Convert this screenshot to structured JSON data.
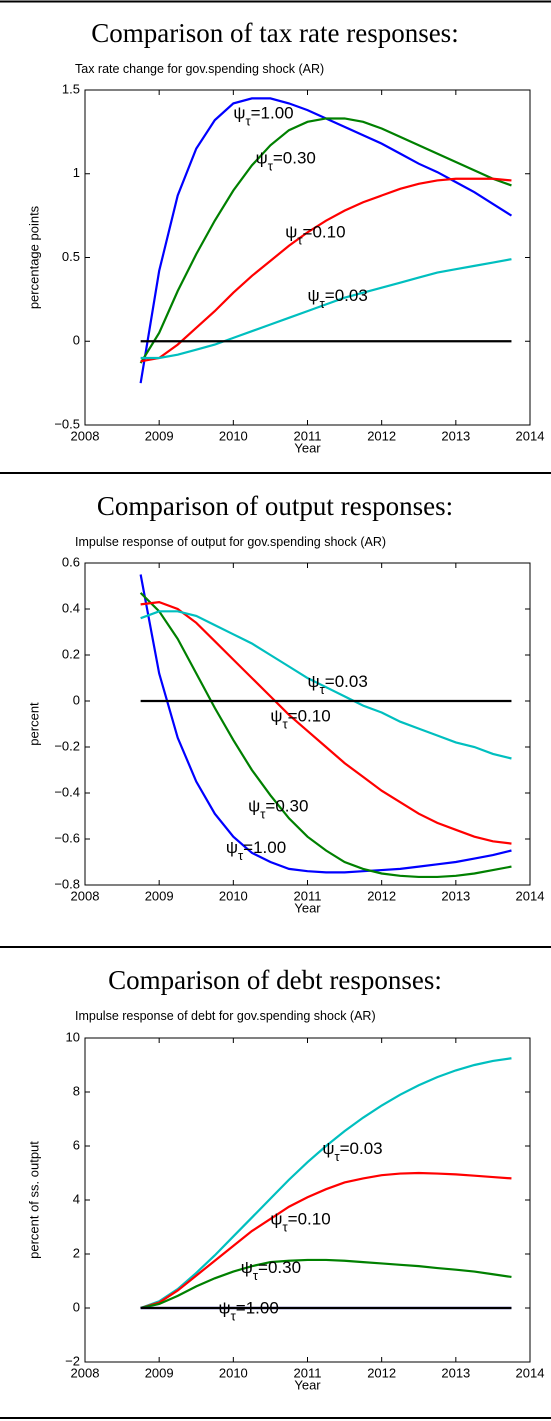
{
  "chart_data": [
    {
      "type": "line",
      "title": "Comparison of tax rate responses:",
      "subtitle": "Tax rate change for gov.spending shock (AR)",
      "xlabel": "Year",
      "ylabel": "percentage points",
      "x": [
        2008.75,
        2009,
        2009.25,
        2009.5,
        2009.75,
        2010,
        2010.25,
        2010.5,
        2010.75,
        2011,
        2011.25,
        2011.5,
        2011.75,
        2012,
        2012.25,
        2012.5,
        2012.75,
        2013,
        2013.25,
        2013.5,
        2013.75
      ],
      "xlim": [
        2008,
        2014
      ],
      "xticks": [
        2008,
        2009,
        2010,
        2011,
        2012,
        2013,
        2014
      ],
      "ylim": [
        -0.5,
        1.5
      ],
      "yticks": [
        {
          "value": -0.5,
          "label": "−0.5"
        },
        0,
        0.5,
        1,
        1.5
      ],
      "series": [
        {
          "color": "#0000ff",
          "values": [
            -0.25,
            0.42,
            0.87,
            1.15,
            1.32,
            1.42,
            1.45,
            1.45,
            1.42,
            1.38,
            1.33,
            1.28,
            1.23,
            1.18,
            1.12,
            1.06,
            1.01,
            0.95,
            0.89,
            0.82,
            0.75
          ]
        },
        {
          "color": "#008000",
          "values": [
            -0.13,
            0.05,
            0.3,
            0.52,
            0.72,
            0.9,
            1.05,
            1.17,
            1.26,
            1.31,
            1.33,
            1.33,
            1.31,
            1.27,
            1.22,
            1.17,
            1.12,
            1.07,
            1.02,
            0.97,
            0.93
          ]
        },
        {
          "color": "#ff0000",
          "values": [
            -0.12,
            -0.1,
            -0.02,
            0.08,
            0.18,
            0.29,
            0.39,
            0.48,
            0.57,
            0.65,
            0.72,
            0.78,
            0.83,
            0.87,
            0.91,
            0.94,
            0.96,
            0.97,
            0.97,
            0.97,
            0.96
          ]
        },
        {
          "color": "#00bfbf",
          "values": [
            -0.1,
            -0.1,
            -0.08,
            -0.05,
            -0.02,
            0.02,
            0.06,
            0.1,
            0.14,
            0.18,
            0.22,
            0.26,
            0.29,
            0.32,
            0.35,
            0.38,
            0.41,
            0.43,
            0.45,
            0.47,
            0.49
          ]
        },
        {
          "color": "#000000",
          "values": [
            0,
            0,
            0,
            0,
            0,
            0,
            0,
            0,
            0,
            0,
            0,
            0,
            0,
            0,
            0,
            0,
            0,
            0,
            0,
            0,
            0
          ]
        }
      ],
      "annotations": [
        {
          "symbol": "ψ",
          "subscript": "τ",
          "label": "=1.00"
        },
        {
          "symbol": "ψ",
          "subscript": "τ",
          "label": "=0.30"
        },
        {
          "symbol": "ψ",
          "subscript": "τ",
          "label": "=0.10"
        },
        {
          "symbol": "ψ",
          "subscript": "τ",
          "label": "=0.03"
        }
      ]
    },
    {
      "type": "line",
      "title": "Comparison of output responses:",
      "subtitle": "Impulse response of output for gov.spending shock (AR)",
      "xlabel": "Year",
      "ylabel": "percent",
      "x": [
        2008.75,
        2009,
        2009.25,
        2009.5,
        2009.75,
        2010,
        2010.25,
        2010.5,
        2010.75,
        2011,
        2011.25,
        2011.5,
        2011.75,
        2012,
        2012.25,
        2012.5,
        2012.75,
        2013,
        2013.25,
        2013.5,
        2013.75
      ],
      "xlim": [
        2008,
        2014
      ],
      "xticks": [
        2008,
        2009,
        2010,
        2011,
        2012,
        2013,
        2014
      ],
      "ylim": [
        -0.8,
        0.6
      ],
      "yticks": [
        {
          "value": -0.8,
          "label": "−0.8"
        },
        {
          "value": -0.6,
          "label": "−0.6"
        },
        {
          "value": -0.4,
          "label": "−0.4"
        },
        {
          "value": -0.2,
          "label": "−0.2"
        },
        0,
        0.2,
        0.4,
        0.6
      ],
      "series": [
        {
          "color": "#0000ff",
          "values": [
            0.55,
            0.12,
            -0.16,
            -0.35,
            -0.49,
            -0.59,
            -0.66,
            -0.7,
            -0.73,
            -0.74,
            -0.745,
            -0.745,
            -0.74,
            -0.735,
            -0.73,
            -0.72,
            -0.71,
            -0.7,
            -0.685,
            -0.67,
            -0.65
          ]
        },
        {
          "color": "#008000",
          "values": [
            0.47,
            0.39,
            0.27,
            0.12,
            -0.03,
            -0.17,
            -0.3,
            -0.41,
            -0.51,
            -0.59,
            -0.65,
            -0.7,
            -0.73,
            -0.75,
            -0.76,
            -0.765,
            -0.765,
            -0.76,
            -0.75,
            -0.735,
            -0.72
          ]
        },
        {
          "color": "#ff0000",
          "values": [
            0.42,
            0.43,
            0.4,
            0.34,
            0.26,
            0.18,
            0.1,
            0.02,
            -0.06,
            -0.13,
            -0.2,
            -0.27,
            -0.33,
            -0.39,
            -0.44,
            -0.49,
            -0.53,
            -0.56,
            -0.59,
            -0.61,
            -0.62
          ]
        },
        {
          "color": "#00bfbf",
          "values": [
            0.36,
            0.39,
            0.39,
            0.37,
            0.33,
            0.29,
            0.25,
            0.2,
            0.15,
            0.1,
            0.06,
            0.02,
            -0.02,
            -0.05,
            -0.09,
            -0.12,
            -0.15,
            -0.18,
            -0.2,
            -0.23,
            -0.25
          ]
        },
        {
          "color": "#000000",
          "values": [
            0,
            0,
            0,
            0,
            0,
            0,
            0,
            0,
            0,
            0,
            0,
            0,
            0,
            0,
            0,
            0,
            0,
            0,
            0,
            0,
            0
          ]
        }
      ],
      "annotations": [
        {
          "symbol": "ψ",
          "subscript": "τ",
          "label": "=0.03"
        },
        {
          "symbol": "ψ",
          "subscript": "τ",
          "label": "=0.10"
        },
        {
          "symbol": "ψ",
          "subscript": "τ",
          "label": "=0.30"
        },
        {
          "symbol": "ψ",
          "subscript": "τ",
          "label": "=1.00"
        }
      ]
    },
    {
      "type": "line",
      "title": "Comparison of debt responses:",
      "subtitle": "Impulse response of debt for gov.spending shock (AR)",
      "xlabel": "Year",
      "ylabel": "percent of ss. output",
      "x": [
        2008.75,
        2009,
        2009.25,
        2009.5,
        2009.75,
        2010,
        2010.25,
        2010.5,
        2010.75,
        2011,
        2011.25,
        2011.5,
        2011.75,
        2012,
        2012.25,
        2012.5,
        2012.75,
        2013,
        2013.25,
        2013.5,
        2013.75
      ],
      "xlim": [
        2008,
        2014
      ],
      "xticks": [
        2008,
        2009,
        2010,
        2011,
        2012,
        2013,
        2014
      ],
      "ylim": [
        -2,
        10
      ],
      "yticks": [
        {
          "value": -2,
          "label": "−2"
        },
        0,
        2,
        4,
        6,
        8,
        10
      ],
      "series": [
        {
          "color": "#00bfbf",
          "values": [
            0,
            0.25,
            0.7,
            1.3,
            1.95,
            2.65,
            3.35,
            4.05,
            4.75,
            5.4,
            6.0,
            6.55,
            7.05,
            7.5,
            7.9,
            8.25,
            8.55,
            8.8,
            9.0,
            9.15,
            9.25
          ]
        },
        {
          "color": "#ff0000",
          "values": [
            0,
            0.2,
            0.65,
            1.2,
            1.75,
            2.3,
            2.85,
            3.3,
            3.75,
            4.1,
            4.4,
            4.65,
            4.8,
            4.92,
            4.98,
            5.0,
            4.98,
            4.95,
            4.9,
            4.85,
            4.8
          ]
        },
        {
          "color": "#008000",
          "values": [
            0,
            0.15,
            0.45,
            0.8,
            1.1,
            1.35,
            1.55,
            1.7,
            1.75,
            1.78,
            1.78,
            1.75,
            1.7,
            1.65,
            1.6,
            1.55,
            1.48,
            1.42,
            1.35,
            1.25,
            1.15
          ]
        },
        {
          "color": "#0000ff",
          "values": [
            0,
            0,
            0,
            0,
            0,
            0,
            0,
            0,
            0,
            0,
            0,
            0,
            0,
            0,
            0,
            0,
            0,
            0,
            0,
            0,
            0
          ]
        },
        {
          "color": "#000000",
          "values": [
            0,
            0,
            0,
            0,
            0,
            0,
            0,
            0,
            0,
            0,
            0,
            0,
            0,
            0,
            0,
            0,
            0,
            0,
            0,
            0,
            0
          ]
        }
      ],
      "annotations": [
        {
          "symbol": "ψ",
          "subscript": "τ",
          "label": "=0.03"
        },
        {
          "symbol": "ψ",
          "subscript": "τ",
          "label": "=0.10"
        },
        {
          "symbol": "ψ",
          "subscript": "τ",
          "label": "=0.30"
        },
        {
          "symbol": "ψ",
          "subscript": "τ",
          "label": "=1.00"
        }
      ]
    }
  ]
}
